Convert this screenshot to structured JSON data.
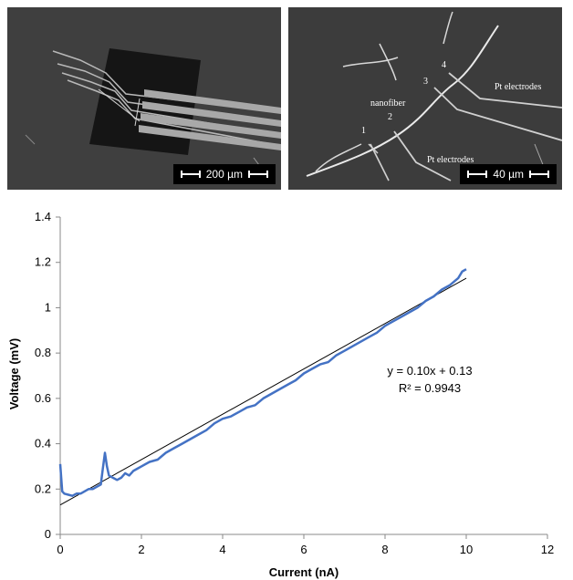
{
  "sem_left": {
    "scalebar": "200 µm"
  },
  "sem_right": {
    "scalebar": "40 µm",
    "labels": {
      "nanofiber": "nanofiber",
      "electrodes_top": "Pt electrodes",
      "electrodes_bottom": "Pt electrodes",
      "n1": "1",
      "n2": "2",
      "n3": "3",
      "n4": "4"
    }
  },
  "chart_data": {
    "type": "line",
    "xlabel": "Current (nA)",
    "ylabel": "Voltage (mV)",
    "xlim": [
      0,
      12
    ],
    "ylim": [
      0,
      1.4
    ],
    "xticks": [
      "0",
      "2",
      "4",
      "6",
      "8",
      "10",
      "12"
    ],
    "yticks": [
      "0",
      "0.2",
      "0.4",
      "0.6",
      "0.8",
      "1",
      "1.2",
      "1.4"
    ],
    "grid": false,
    "series": [
      {
        "color": "#4472c4",
        "x": [
          0,
          0.05,
          0.1,
          0.2,
          0.3,
          0.4,
          0.5,
          0.6,
          0.7,
          0.8,
          0.9,
          1.0,
          1.05,
          1.1,
          1.15,
          1.2,
          1.3,
          1.4,
          1.5,
          1.6,
          1.7,
          1.8,
          1.9,
          2.0,
          2.2,
          2.4,
          2.6,
          2.8,
          3.0,
          3.2,
          3.4,
          3.6,
          3.8,
          4.0,
          4.2,
          4.4,
          4.6,
          4.8,
          5.0,
          5.2,
          5.4,
          5.6,
          5.8,
          6.0,
          6.2,
          6.4,
          6.6,
          6.8,
          7.0,
          7.2,
          7.4,
          7.6,
          7.8,
          8.0,
          8.2,
          8.4,
          8.6,
          8.8,
          9.0,
          9.2,
          9.4,
          9.6,
          9.8,
          9.9,
          10.0
        ],
        "y": [
          0.31,
          0.19,
          0.18,
          0.175,
          0.17,
          0.18,
          0.18,
          0.19,
          0.2,
          0.2,
          0.21,
          0.22,
          0.29,
          0.36,
          0.3,
          0.26,
          0.25,
          0.24,
          0.25,
          0.27,
          0.26,
          0.28,
          0.29,
          0.3,
          0.32,
          0.33,
          0.36,
          0.38,
          0.4,
          0.42,
          0.44,
          0.46,
          0.49,
          0.51,
          0.52,
          0.54,
          0.56,
          0.57,
          0.6,
          0.62,
          0.64,
          0.66,
          0.68,
          0.71,
          0.73,
          0.75,
          0.76,
          0.79,
          0.81,
          0.83,
          0.85,
          0.87,
          0.89,
          0.92,
          0.94,
          0.96,
          0.98,
          1.0,
          1.03,
          1.05,
          1.08,
          1.1,
          1.13,
          1.16,
          1.17
        ]
      }
    ],
    "trendline": {
      "slope": 0.1,
      "intercept": 0.13,
      "x_range": [
        0,
        10
      ],
      "color": "#000000"
    },
    "annotations": {
      "equation": "y = 0.10x + 0.13",
      "r2": "R² = 0.9943"
    }
  }
}
